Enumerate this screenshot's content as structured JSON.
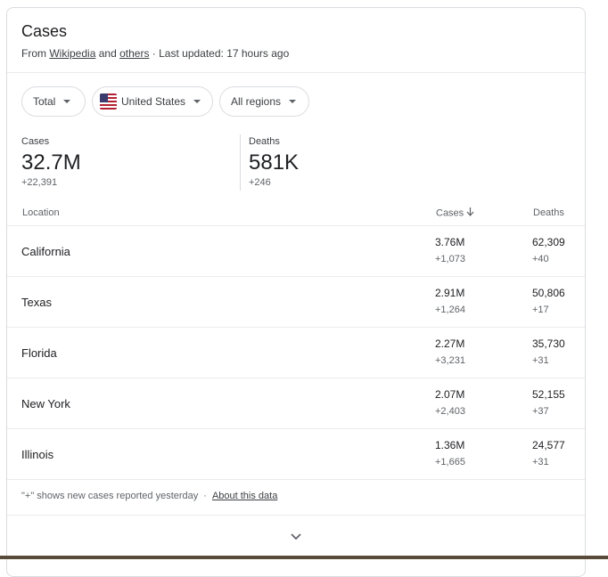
{
  "header": {
    "title": "Cases",
    "source_prefix": "From",
    "source_link1": "Wikipedia",
    "source_and": "and",
    "source_link2": "others",
    "updated": "· Last updated: 17 hours ago"
  },
  "filters": {
    "total": "Total",
    "country": "United States",
    "country_icon": "us-flag-icon",
    "regions": "All regions"
  },
  "stats": {
    "cases_label": "Cases",
    "cases_value": "32.7M",
    "cases_delta": "+22,391",
    "deaths_label": "Deaths",
    "deaths_value": "581K",
    "deaths_delta": "+246"
  },
  "table": {
    "headers": {
      "location": "Location",
      "cases": "Cases",
      "deaths": "Deaths"
    },
    "rows": [
      {
        "location": "California",
        "cases": "3.76M",
        "cases_delta": "+1,073",
        "deaths": "62,309",
        "deaths_delta": "+40"
      },
      {
        "location": "Texas",
        "cases": "2.91M",
        "cases_delta": "+1,264",
        "deaths": "50,806",
        "deaths_delta": "+17"
      },
      {
        "location": "Florida",
        "cases": "2.27M",
        "cases_delta": "+3,231",
        "deaths": "35,730",
        "deaths_delta": "+31"
      },
      {
        "location": "New York",
        "cases": "2.07M",
        "cases_delta": "+2,403",
        "deaths": "52,155",
        "deaths_delta": "+37"
      },
      {
        "location": "Illinois",
        "cases": "1.36M",
        "cases_delta": "+1,665",
        "deaths": "24,577",
        "deaths_delta": "+31"
      }
    ]
  },
  "footer": {
    "note": "\"+\" shows new cases reported yesterday",
    "about_link": "About this data",
    "expand_icon": "chevron-down-icon"
  },
  "colors": {
    "text": "#202124",
    "secondary": "#5f6368",
    "border": "#dadce0"
  }
}
